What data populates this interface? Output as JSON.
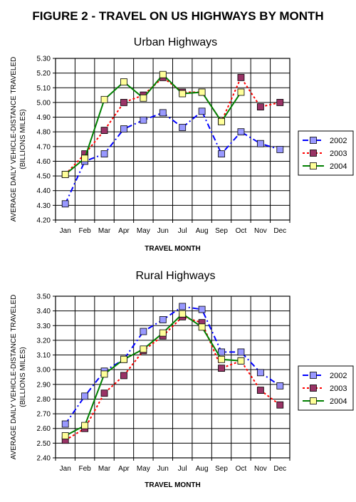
{
  "figure_title": "FIGURE 2 - TRAVEL ON US HIGHWAYS BY MONTH",
  "colors": {
    "grid": "#000000",
    "y2002": "#0000ff",
    "y2003": "#ff0000",
    "y2004": "#008000",
    "marker2002": "#9999ff",
    "marker2003": "#993366",
    "marker2004": "#ffff99"
  },
  "chart_data": [
    {
      "type": "line",
      "title": "Urban Highways",
      "xlabel": "TRAVEL MONTH",
      "ylabel": "AVERAGE DAILY VEHICLE-DISTANCE TRAVELED",
      "ylabel2": "(BILLIONS MILES)",
      "categories": [
        "Jan",
        "Feb",
        "Mar",
        "Apr",
        "May",
        "Jun",
        "Jul",
        "Aug",
        "Sep",
        "Oct",
        "Nov",
        "Dec"
      ],
      "ylim": [
        4.2,
        5.3
      ],
      "yticks": [
        "4.20",
        "4.30",
        "4.40",
        "4.50",
        "4.60",
        "4.70",
        "4.80",
        "4.90",
        "5.00",
        "5.10",
        "5.20",
        "5.30"
      ],
      "grid": true,
      "legend_position": "right",
      "series": [
        {
          "name": "2002",
          "values": [
            4.31,
            4.6,
            4.65,
            4.82,
            4.88,
            4.93,
            4.83,
            4.94,
            4.65,
            4.8,
            4.72,
            4.68
          ]
        },
        {
          "name": "2003",
          "values": [
            4.51,
            4.65,
            4.81,
            5.0,
            5.05,
            5.17,
            5.07,
            5.07,
            4.87,
            5.17,
            4.97,
            5.0
          ]
        },
        {
          "name": "2004",
          "values": [
            4.51,
            4.62,
            5.02,
            5.14,
            5.03,
            5.19,
            5.06,
            5.07,
            4.87,
            5.07,
            null,
            null
          ]
        }
      ]
    },
    {
      "type": "line",
      "title": "Rural Highways",
      "xlabel": "TRAVEL MONTH",
      "ylabel": "AVERAGE DAILY VEHICLE-DISTANCE TRAVELED",
      "ylabel2": "(BILLIONS MILES)",
      "categories": [
        "Jan",
        "Feb",
        "Mar",
        "Apr",
        "May",
        "Jun",
        "Jul",
        "Aug",
        "Sep",
        "Oct",
        "Nov",
        "Dec"
      ],
      "ylim": [
        2.4,
        3.5
      ],
      "yticks": [
        "2.40",
        "2.50",
        "2.60",
        "2.70",
        "2.80",
        "2.90",
        "3.00",
        "3.10",
        "3.20",
        "3.30",
        "3.40",
        "3.50"
      ],
      "grid": true,
      "legend_position": "right",
      "series": [
        {
          "name": "2002",
          "values": [
            2.63,
            2.82,
            2.99,
            3.07,
            3.26,
            3.34,
            3.43,
            3.41,
            3.12,
            3.12,
            2.98,
            2.89
          ]
        },
        {
          "name": "2003",
          "values": [
            2.52,
            2.6,
            2.84,
            2.96,
            3.13,
            3.23,
            3.36,
            3.32,
            3.01,
            3.06,
            2.86,
            2.76
          ]
        },
        {
          "name": "2004",
          "values": [
            2.55,
            2.62,
            2.97,
            3.07,
            3.14,
            3.25,
            3.38,
            3.29,
            3.07,
            3.06,
            null,
            null
          ]
        }
      ]
    }
  ]
}
